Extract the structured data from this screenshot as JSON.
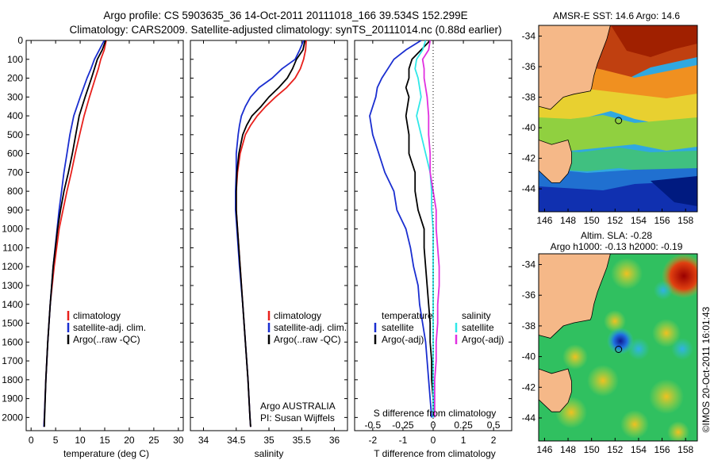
{
  "title_line1": "Argo profile: CS 5903635_36 14-Oct-2011 20111018_166 39.534S 152.299E",
  "title_line2": "Climatology: CARS2009. Satellite-adjusted climatology: synTS_20111014.nc (0.88d earlier)",
  "colors": {
    "climatology": "#e8201c",
    "satellite": "#1a2ed0",
    "argo": "#000000",
    "sal_satellite": "#30e8e8",
    "sal_argo": "#e030e0"
  },
  "chart_data": [
    {
      "type": "line",
      "name": "temperature-panel",
      "xlabel": "temperature (deg C)",
      "ylabel": "",
      "xlim": [
        -1,
        31
      ],
      "ylim": [
        2070,
        0
      ],
      "x_ticks": [
        0,
        5,
        10,
        15,
        20,
        25,
        30
      ],
      "y_ticks": [
        0,
        100,
        200,
        300,
        400,
        500,
        600,
        700,
        800,
        900,
        1000,
        1100,
        1200,
        1300,
        1400,
        1500,
        1600,
        1700,
        1800,
        1900,
        2000
      ],
      "depth": [
        0,
        50,
        100,
        150,
        200,
        300,
        400,
        500,
        600,
        700,
        800,
        900,
        1000,
        1200,
        1400,
        1600,
        1800,
        2000,
        2050
      ],
      "legend": [
        "climatology",
        "satellite-adj. clim.",
        "Argo(..raw -QC)"
      ],
      "series": [
        {
          "name": "climatology",
          "color_key": "climatology",
          "values": [
            15.3,
            14.9,
            14.2,
            13.7,
            13.1,
            11.9,
            10.8,
            9.9,
            9.0,
            8.2,
            7.3,
            6.5,
            5.7,
            4.7,
            3.9,
            3.4,
            3.0,
            2.7,
            2.6
          ]
        },
        {
          "name": "satellite-adj. clim.",
          "color_key": "satellite",
          "values": [
            14.9,
            13.9,
            12.9,
            12.2,
            11.4,
            10.0,
            8.7,
            7.9,
            7.3,
            6.7,
            6.2,
            5.7,
            5.3,
            4.5,
            3.9,
            3.4,
            3.0,
            2.7,
            2.6
          ]
        },
        {
          "name": "Argo(..raw -QC)",
          "color_key": "argo",
          "values": [
            15.2,
            14.5,
            13.5,
            12.9,
            12.3,
            11.0,
            9.8,
            9.1,
            8.4,
            7.6,
            6.7,
            6.0,
            5.4,
            4.5,
            3.9,
            3.4,
            3.0,
            2.75,
            2.7
          ]
        }
      ]
    },
    {
      "type": "line",
      "name": "salinity-panel",
      "xlabel": "salinity",
      "xlim": [
        33.8,
        36.2
      ],
      "ylim": [
        2070,
        0
      ],
      "x_ticks": [
        34,
        34.5,
        35,
        35.5,
        36
      ],
      "depth": [
        0,
        50,
        100,
        150,
        200,
        250,
        300,
        350,
        400,
        450,
        500,
        600,
        700,
        800,
        900,
        1000,
        1200,
        1400,
        1600,
        1800,
        2000,
        2050
      ],
      "legend": [
        "climatology",
        "satellite-adj. clim.",
        "Argo(..raw -QC)"
      ],
      "annotation": [
        "Argo AUSTRALIA",
        "PI: Susan Wijffels"
      ],
      "series": [
        {
          "name": "climatology",
          "color_key": "climatology",
          "values": [
            35.57,
            35.56,
            35.53,
            35.48,
            35.4,
            35.27,
            35.1,
            34.95,
            34.82,
            34.72,
            34.64,
            34.56,
            34.52,
            34.5,
            34.5,
            34.52,
            34.56,
            34.6,
            34.64,
            34.68,
            34.71,
            34.72
          ]
        },
        {
          "name": "satellite-adj. clim.",
          "color_key": "satellite",
          "values": [
            35.53,
            35.47,
            35.4,
            35.2,
            35.05,
            34.85,
            34.72,
            34.64,
            34.58,
            34.55,
            34.53,
            34.5,
            34.5,
            34.49,
            34.49,
            34.51,
            34.55,
            34.6,
            34.64,
            34.68,
            34.71,
            34.72
          ]
        },
        {
          "name": "Argo(..raw -QC)",
          "color_key": "argo",
          "values": [
            35.55,
            35.52,
            35.42,
            35.36,
            35.28,
            35.15,
            35.0,
            34.88,
            34.74,
            34.66,
            34.6,
            34.54,
            34.51,
            34.5,
            34.5,
            34.52,
            34.56,
            34.6,
            34.64,
            34.68,
            34.71,
            34.72
          ]
        }
      ]
    },
    {
      "type": "line",
      "name": "difference-panel",
      "xlabel": "T difference from climatology",
      "xlabel_top": "S difference from climatology",
      "xlim": [
        -2.6,
        2.6
      ],
      "ylim": [
        2070,
        0
      ],
      "x_ticks": [
        -2,
        -1,
        0,
        1,
        2
      ],
      "s_ticks_pos": [
        -2,
        -1,
        0,
        1,
        2
      ],
      "s_tick_labels": [
        "-0.5",
        "-0.25",
        "0",
        "0.25",
        "0.5"
      ],
      "s_scale": 4,
      "legend_left": [
        "temperature",
        "satellite",
        "Argo(-adj)"
      ],
      "legend_right": [
        "salinity",
        "satellite",
        "Argo(-adj)"
      ],
      "depth": [
        0,
        50,
        100,
        150,
        200,
        250,
        300,
        400,
        500,
        600,
        700,
        800,
        900,
        1000,
        1100,
        1200,
        1300,
        1400,
        1500,
        1600,
        1700,
        1800,
        1900,
        2000
      ],
      "series": [
        {
          "name": "temperature satellite",
          "color_key": "satellite",
          "values": [
            -0.4,
            -0.9,
            -1.3,
            -1.5,
            -1.7,
            -1.85,
            -1.9,
            -2.1,
            -2.0,
            -1.8,
            -1.6,
            -1.3,
            -1.2,
            -0.9,
            -0.75,
            -0.65,
            -0.5,
            -0.45,
            -0.35,
            -0.25,
            -0.2,
            -0.15,
            -0.1,
            -0.05
          ]
        },
        {
          "name": "temperature Argo(-adj)",
          "color_key": "argo",
          "values": [
            -0.1,
            -0.4,
            -0.7,
            -0.8,
            -0.8,
            -0.9,
            -0.8,
            -0.9,
            -0.8,
            -0.8,
            -0.6,
            -0.6,
            -0.5,
            -0.3,
            -0.3,
            -0.25,
            -0.2,
            -0.15,
            -0.1,
            -0.1,
            -0.05,
            -0.05,
            0,
            0
          ]
        },
        {
          "name": "salinity satellite",
          "color_key": "sal_satellite",
          "values": [
            -0.25,
            -0.35,
            -0.55,
            -0.6,
            -0.5,
            -0.45,
            -0.4,
            -0.55,
            -0.4,
            -0.25,
            -0.1,
            -0.05,
            -0.05,
            0,
            0,
            0,
            0,
            0,
            0,
            0,
            0,
            0,
            0,
            0
          ]
        },
        {
          "name": "salinity Argo(-adj)",
          "color_key": "sal_argo",
          "values": [
            -0.1,
            -0.15,
            -0.35,
            -0.3,
            -0.3,
            -0.25,
            -0.2,
            -0.15,
            -0.15,
            -0.1,
            -0.1,
            0,
            0.1,
            0.1,
            0.15,
            0.2,
            0.2,
            0.15,
            0.15,
            0.1,
            0.1,
            0.05,
            0.05,
            0.05
          ]
        }
      ]
    },
    {
      "type": "heatmap",
      "name": "sst-map",
      "title": "AMSR-E SST: 14.6  Argo: 14.6",
      "xlim": [
        145.5,
        159
      ],
      "ylim": [
        -45.5,
        -33.3
      ],
      "x_ticks": [
        146,
        148,
        150,
        152,
        154,
        156,
        158
      ],
      "y_ticks": [
        -34,
        -36,
        -38,
        -40,
        -42,
        -44
      ],
      "y_tick_labels": [
        "-34",
        "-36",
        "-38",
        "-40",
        "-42",
        "-44"
      ],
      "float": {
        "lon": 152.3,
        "lat": -39.53
      }
    },
    {
      "type": "heatmap",
      "name": "sla-map",
      "title_line1": "Altim. SLA: -0.28",
      "title_line2": "Argo h1000: -0.13 h2000: -0.19",
      "xlim": [
        145.5,
        159
      ],
      "ylim": [
        -45.5,
        -33.3
      ],
      "x_ticks": [
        146,
        148,
        150,
        152,
        154,
        156,
        158
      ],
      "y_ticks": [
        -34,
        -36,
        -38,
        -40,
        -42,
        -44
      ],
      "y_tick_labels": [
        "-34",
        "-36",
        "-38",
        "-40",
        "-42",
        "-44"
      ],
      "float": {
        "lon": 152.3,
        "lat": -39.53
      }
    }
  ],
  "credit": "©IMOS 20-Oct-2011 16:01:43"
}
